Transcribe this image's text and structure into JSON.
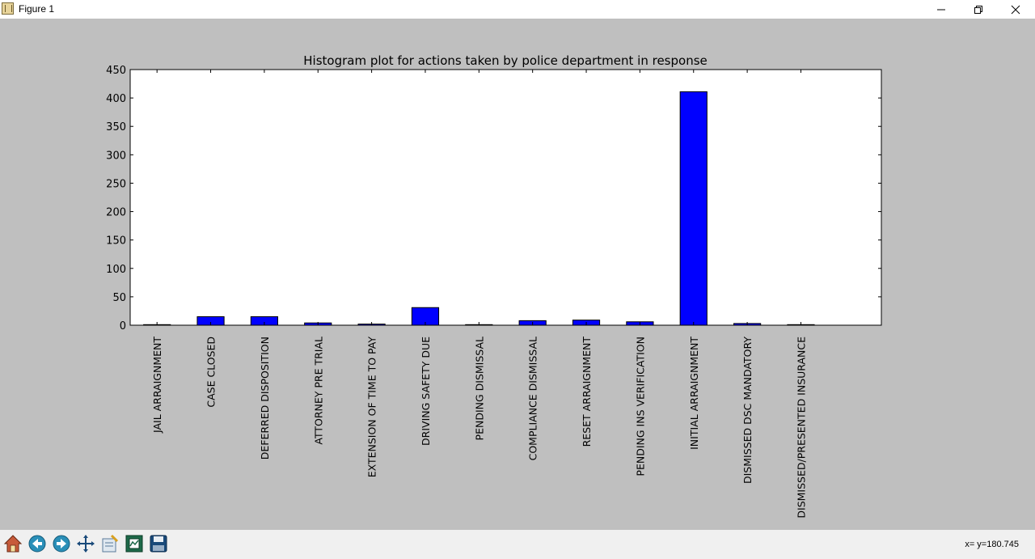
{
  "window": {
    "title": "Figure 1",
    "icons": {
      "app": "matplotlib-icon",
      "minimize": "minimize-icon",
      "maximize": "restore-icon",
      "close": "close-icon"
    }
  },
  "toolbar": {
    "tools": [
      "home-icon",
      "back-arrow-icon",
      "forward-arrow-icon",
      "pan-icon",
      "subplots-config-icon",
      "zoom-rect-icon",
      "save-icon"
    ],
    "coordinates": "x= y=180.745"
  },
  "colors": {
    "bar": "#0000ff",
    "figure_background": "#bfbfbf",
    "axes_background": "#ffffff"
  },
  "chart_data": {
    "type": "bar",
    "title": "Histogram plot for actions taken by police department in response",
    "xlabel": "",
    "ylabel": "",
    "ylim": [
      0,
      450
    ],
    "yticks": [
      0,
      50,
      100,
      150,
      200,
      250,
      300,
      350,
      400,
      450
    ],
    "categories": [
      "JAIL ARRAIGNMENT",
      "CASE CLOSED",
      "DEFERRED DISPOSITION",
      "ATTORNEY PRE TRIAL",
      "EXTENSION OF TIME TO PAY",
      "DRIVING SAFETY DUE",
      "PENDING DISMISSAL",
      "COMPLIANCE DISMISSAL",
      "RESET ARRAIGNMENT",
      "PENDING INS VERIFICATION",
      "INITIAL ARRAIGNMENT",
      "DISMISSED DSC MANDATORY",
      "DISMISSED/PRESENTED INSURANCE"
    ],
    "values": [
      1,
      15,
      15,
      4,
      2,
      31,
      1,
      8,
      9,
      6,
      411,
      3,
      1
    ],
    "xlim": [
      -0.5,
      13.5
    ],
    "grid": false,
    "legend": "none"
  }
}
